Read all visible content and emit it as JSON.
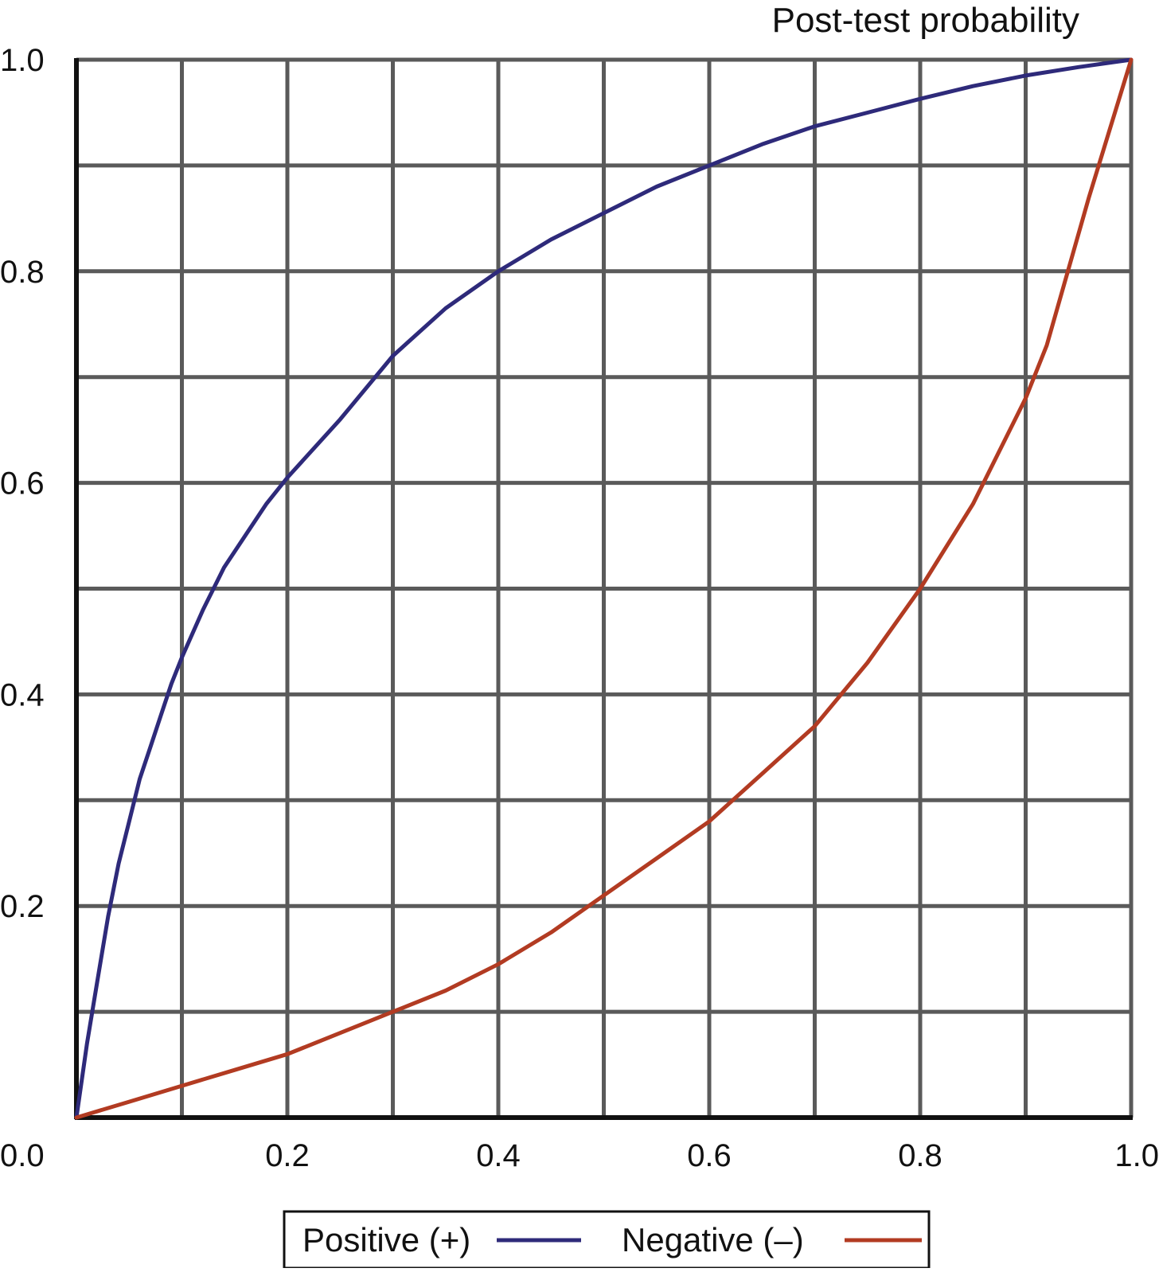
{
  "chart_data": {
    "type": "line",
    "title": "Post-test probability",
    "xlabel": "",
    "ylabel": "",
    "xlim": [
      0,
      1
    ],
    "ylim": [
      0,
      1
    ],
    "x_ticks": [
      "0.0",
      "0.2",
      "0.4",
      "0.6",
      "0.8",
      "1.0"
    ],
    "y_ticks": [
      "0.2",
      "0.4",
      "0.6",
      "0.8",
      "1.0"
    ],
    "grid": true,
    "legend_position": "bottom-center",
    "series": [
      {
        "name": "Positive (+)",
        "color": "#2e2a7a",
        "points": [
          [
            0,
            0
          ],
          [
            0.01,
            0.07
          ],
          [
            0.02,
            0.13
          ],
          [
            0.03,
            0.19
          ],
          [
            0.04,
            0.24
          ],
          [
            0.05,
            0.28
          ],
          [
            0.06,
            0.32
          ],
          [
            0.07,
            0.35
          ],
          [
            0.08,
            0.38
          ],
          [
            0.09,
            0.41
          ],
          [
            0.1,
            0.435
          ],
          [
            0.12,
            0.48
          ],
          [
            0.14,
            0.52
          ],
          [
            0.16,
            0.55
          ],
          [
            0.18,
            0.58
          ],
          [
            0.2,
            0.605
          ],
          [
            0.25,
            0.66
          ],
          [
            0.3,
            0.72
          ],
          [
            0.35,
            0.765
          ],
          [
            0.4,
            0.8
          ],
          [
            0.45,
            0.83
          ],
          [
            0.5,
            0.855
          ],
          [
            0.55,
            0.88
          ],
          [
            0.6,
            0.9
          ],
          [
            0.65,
            0.92
          ],
          [
            0.7,
            0.937
          ],
          [
            0.75,
            0.95
          ],
          [
            0.8,
            0.963
          ],
          [
            0.85,
            0.975
          ],
          [
            0.9,
            0.985
          ],
          [
            0.95,
            0.993
          ],
          [
            1.0,
            1.0
          ]
        ]
      },
      {
        "name": "Negative (–)",
        "color": "#b23b22",
        "points": [
          [
            0,
            0
          ],
          [
            0.05,
            0.015
          ],
          [
            0.1,
            0.03
          ],
          [
            0.15,
            0.045
          ],
          [
            0.2,
            0.06
          ],
          [
            0.25,
            0.08
          ],
          [
            0.3,
            0.1
          ],
          [
            0.35,
            0.12
          ],
          [
            0.4,
            0.145
          ],
          [
            0.45,
            0.175
          ],
          [
            0.5,
            0.21
          ],
          [
            0.55,
            0.245
          ],
          [
            0.6,
            0.28
          ],
          [
            0.65,
            0.325
          ],
          [
            0.7,
            0.37
          ],
          [
            0.75,
            0.43
          ],
          [
            0.8,
            0.5
          ],
          [
            0.85,
            0.58
          ],
          [
            0.87,
            0.62
          ],
          [
            0.9,
            0.68
          ],
          [
            0.92,
            0.73
          ],
          [
            0.94,
            0.8
          ],
          [
            0.96,
            0.87
          ],
          [
            0.98,
            0.935
          ],
          [
            1.0,
            1.0
          ]
        ]
      }
    ]
  }
}
